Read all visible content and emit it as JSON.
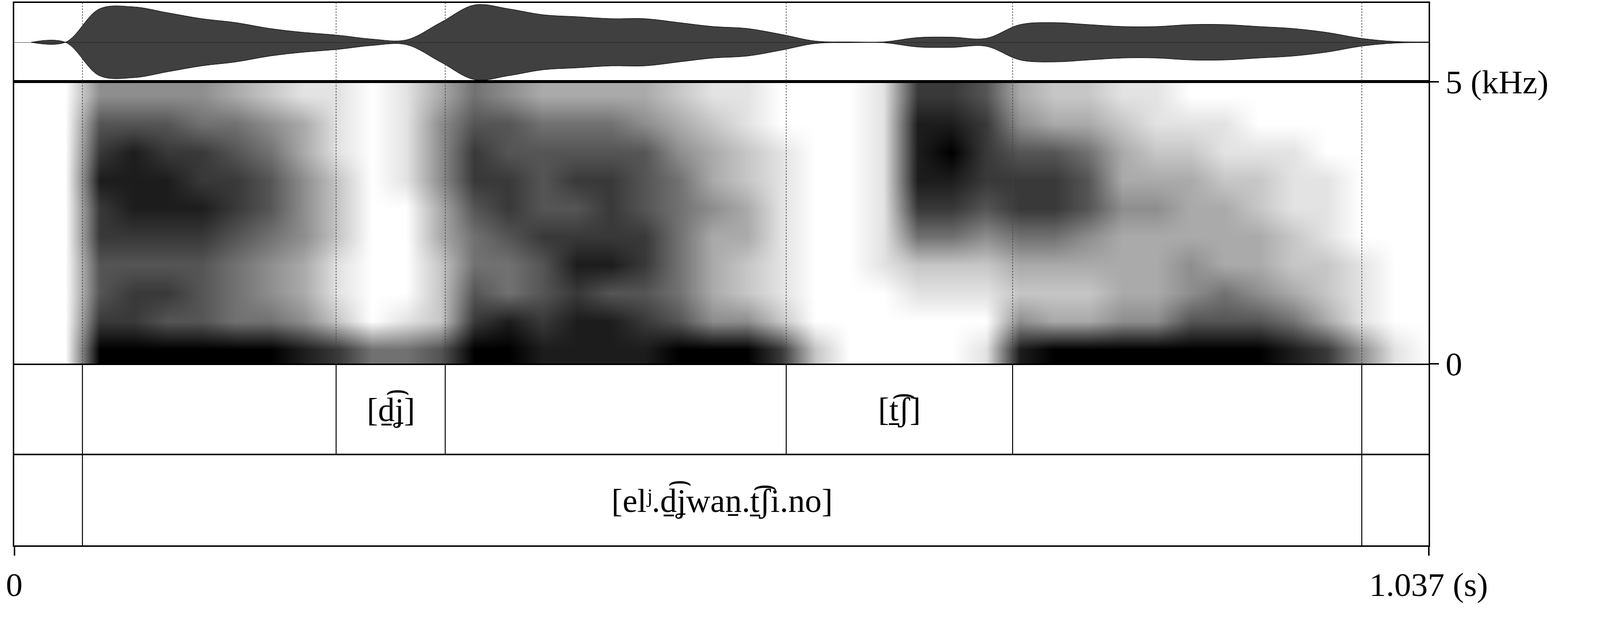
{
  "chart_data": {
    "type": "spectrogram",
    "xlim": [
      0,
      1.037
    ],
    "xticks": [
      0,
      {
        "value": 1.037,
        "label": "1.037 (s)"
      }
    ],
    "ylim": [
      0,
      5
    ],
    "yticks": [
      0,
      {
        "value": 5,
        "label": "5 (kHz)"
      }
    ],
    "color": "#000000",
    "grid": false,
    "waveform": {
      "x": [
        0.0125,
        0.0375,
        0.0625,
        0.0875,
        0.1125,
        0.1375,
        0.1625,
        0.1875,
        0.2125,
        0.2375,
        0.2625,
        0.2875,
        0.3125,
        0.3375,
        0.3625,
        0.3875,
        0.4125,
        0.4375,
        0.4625,
        0.4875,
        0.5125,
        0.5375,
        0.5625,
        0.5875,
        0.6125,
        0.6375,
        0.6625,
        0.6875,
        0.7125,
        0.7375,
        0.7625,
        0.7875,
        0.8125,
        0.8375,
        0.8625,
        0.8875,
        0.9125,
        0.9375,
        0.9625,
        0.9875,
        1.0125,
        1.0375
      ],
      "amplitude": [
        0,
        0,
        0.85,
        0.9,
        0.75,
        0.6,
        0.5,
        0.35,
        0.25,
        0.18,
        0.08,
        0.06,
        0.5,
        0.95,
        0.85,
        0.7,
        0.65,
        0.6,
        0.6,
        0.5,
        0.4,
        0.35,
        0.2,
        0.03,
        0.01,
        0.01,
        0.12,
        0.13,
        0.1,
        0.45,
        0.5,
        0.45,
        0.4,
        0.4,
        0.45,
        0.45,
        0.4,
        0.35,
        0.25,
        0.1,
        0.02,
        0.01
      ],
      "ylim": [
        -1,
        1
      ]
    },
    "spectrogram": {
      "times": [
        0.0125,
        0.0375,
        0.0625,
        0.0875,
        0.1125,
        0.1375,
        0.1625,
        0.1875,
        0.2125,
        0.2375,
        0.2625,
        0.2875,
        0.3125,
        0.3375,
        0.3625,
        0.3875,
        0.4125,
        0.4375,
        0.4625,
        0.4875,
        0.5125,
        0.5375,
        0.5625,
        0.5875,
        0.6125,
        0.6375,
        0.6625,
        0.6875,
        0.7125,
        0.7375,
        0.7625,
        0.7875,
        0.8125,
        0.8375,
        0.8625,
        0.8875,
        0.9125,
        0.9375,
        0.9625,
        0.9875,
        1.0125,
        1.0375
      ],
      "freqs": [
        0.25,
        0.75,
        1.25,
        1.75,
        2.25,
        2.75,
        3.25,
        3.75,
        4.25,
        4.75
      ],
      "zlim": [
        0,
        9
      ],
      "intensity": [
        [
          0,
          0,
          0,
          0,
          0,
          0,
          0,
          0,
          0,
          0
        ],
        [
          0,
          0,
          0,
          0,
          0,
          0,
          0,
          0,
          0,
          0
        ],
        [
          9,
          7,
          6,
          6,
          7,
          7,
          8,
          7,
          6,
          4
        ],
        [
          9,
          7,
          7,
          6,
          7,
          8,
          8,
          8,
          6,
          4
        ],
        [
          9,
          6,
          7,
          6,
          7,
          8,
          8,
          7,
          6,
          4
        ],
        [
          9,
          6,
          6,
          6,
          7,
          8,
          7,
          7,
          5,
          4
        ],
        [
          9,
          5,
          5,
          5,
          6,
          7,
          7,
          6,
          5,
          3
        ],
        [
          9,
          5,
          4,
          4,
          5,
          6,
          6,
          5,
          4,
          2
        ],
        [
          8,
          4,
          3,
          3,
          4,
          4,
          4,
          3,
          3,
          1
        ],
        [
          7,
          2,
          1,
          1,
          2,
          2,
          2,
          1,
          1,
          1
        ],
        [
          5,
          0,
          0,
          0,
          0,
          0,
          0,
          0,
          0,
          0
        ],
        [
          5,
          1,
          0,
          0,
          0,
          0,
          1,
          1,
          1,
          1
        ],
        [
          6,
          2,
          2,
          2,
          3,
          3,
          4,
          4,
          4,
          3
        ],
        [
          9,
          7,
          6,
          5,
          5,
          6,
          7,
          7,
          6,
          5
        ],
        [
          9,
          8,
          5,
          5,
          6,
          7,
          7,
          6,
          6,
          4
        ],
        [
          8,
          7,
          6,
          6,
          7,
          6,
          6,
          6,
          5,
          3
        ],
        [
          8,
          8,
          7,
          8,
          7,
          6,
          7,
          6,
          5,
          3
        ],
        [
          8,
          8,
          6,
          8,
          7,
          7,
          7,
          6,
          5,
          3
        ],
        [
          8,
          7,
          6,
          7,
          7,
          6,
          6,
          6,
          4,
          3
        ],
        [
          9,
          6,
          5,
          5,
          5,
          5,
          5,
          4,
          3,
          2
        ],
        [
          9,
          4,
          3,
          3,
          3,
          4,
          3,
          3,
          2,
          1
        ],
        [
          9,
          4,
          2,
          2,
          3,
          3,
          2,
          2,
          1,
          1
        ],
        [
          7,
          2,
          1,
          1,
          1,
          1,
          1,
          1,
          0,
          0
        ],
        [
          2,
          0,
          0,
          0,
          0,
          0,
          0,
          0,
          0,
          0
        ],
        [
          0,
          0,
          0,
          0,
          0,
          0,
          0,
          0,
          0,
          0
        ],
        [
          0,
          0,
          0,
          1,
          1,
          1,
          1,
          1,
          1,
          1
        ],
        [
          0,
          0,
          1,
          2,
          5,
          7,
          8,
          8,
          8,
          7
        ],
        [
          0,
          0,
          1,
          2,
          5,
          7,
          8,
          9,
          8,
          7
        ],
        [
          1,
          0,
          1,
          2,
          4,
          6,
          7,
          7,
          7,
          6
        ],
        [
          8,
          4,
          2,
          3,
          5,
          7,
          7,
          6,
          4,
          3
        ],
        [
          9,
          3,
          2,
          3,
          5,
          7,
          7,
          6,
          3,
          2
        ],
        [
          9,
          3,
          2,
          3,
          4,
          6,
          6,
          5,
          3,
          2
        ],
        [
          9,
          4,
          3,
          3,
          3,
          4,
          3,
          3,
          2,
          1
        ],
        [
          9,
          4,
          3,
          3,
          3,
          4,
          3,
          2,
          1,
          1
        ],
        [
          9,
          6,
          4,
          4,
          3,
          3,
          3,
          2,
          1,
          0
        ],
        [
          9,
          6,
          5,
          3,
          3,
          3,
          2,
          1,
          1,
          0
        ],
        [
          9,
          6,
          4,
          3,
          3,
          2,
          2,
          1,
          0,
          0
        ],
        [
          8,
          5,
          3,
          2,
          2,
          1,
          1,
          1,
          0,
          0
        ],
        [
          7,
          3,
          2,
          2,
          1,
          1,
          1,
          0,
          0,
          0
        ],
        [
          4,
          1,
          1,
          1,
          0,
          0,
          0,
          0,
          0,
          0
        ],
        [
          1,
          0,
          0,
          0,
          0,
          0,
          0,
          0,
          0,
          0
        ],
        [
          0,
          0,
          0,
          0,
          0,
          0,
          0,
          0,
          0,
          0
        ]
      ]
    },
    "tiers": [
      {
        "boundaries": [
          0.05,
          0.236,
          0.316,
          0.566,
          0.732,
          0.988
        ],
        "intervals": [
          {
            "start": 0.236,
            "end": 0.316,
            "label": "[d̠͡ʝ]"
          },
          {
            "start": 0.566,
            "end": 0.732,
            "label": "[t̠͡ʃ]"
          }
        ]
      },
      {
        "boundaries": [
          0.05,
          0.988
        ],
        "intervals": [
          {
            "start": 0.05,
            "end": 0.988,
            "label": "[elʲ.d̠͡ʝwan̠.t̠͡ʃi.no]"
          }
        ]
      }
    ]
  }
}
